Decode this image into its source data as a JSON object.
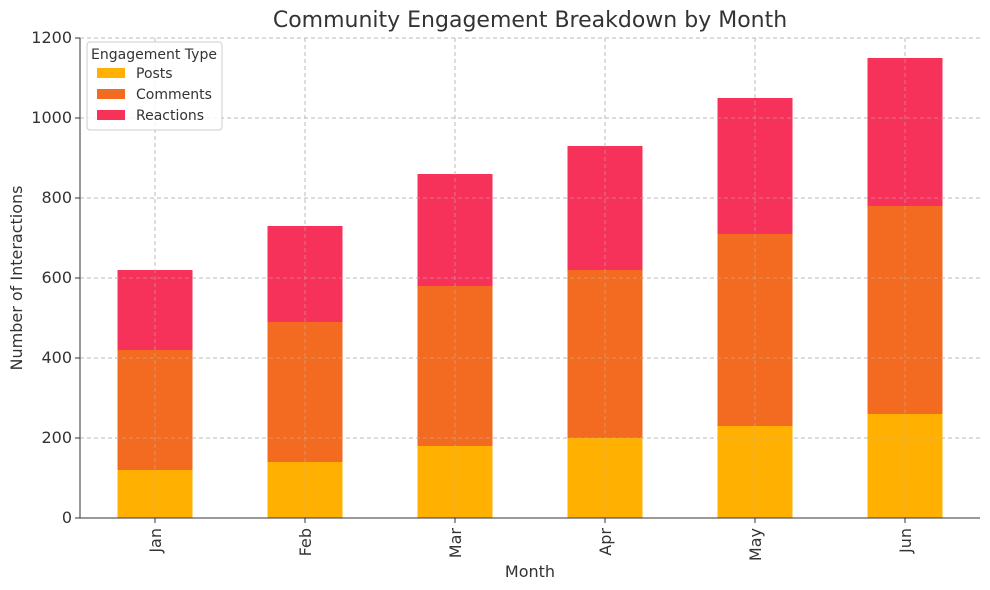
{
  "chart_data": {
    "type": "bar",
    "stacked": true,
    "title": "Community Engagement Breakdown by Month",
    "xlabel": "Month",
    "ylabel": "Number of Interactions",
    "categories": [
      "Jan",
      "Feb",
      "Mar",
      "Apr",
      "May",
      "Jun"
    ],
    "series": [
      {
        "name": "Posts",
        "color": "#FFB000",
        "values": [
          120,
          140,
          180,
          200,
          230,
          260
        ]
      },
      {
        "name": "Comments",
        "color": "#F26B21",
        "values": [
          300,
          350,
          400,
          420,
          480,
          520
        ]
      },
      {
        "name": "Reactions",
        "color": "#F7325A",
        "values": [
          200,
          240,
          280,
          310,
          340,
          370
        ]
      }
    ],
    "ylim": [
      0,
      1200
    ],
    "yticks": [
      0,
      200,
      400,
      600,
      800,
      1000,
      1200
    ],
    "grid": true,
    "legend": {
      "title": "Engagement Type",
      "placement": "top-left"
    }
  }
}
